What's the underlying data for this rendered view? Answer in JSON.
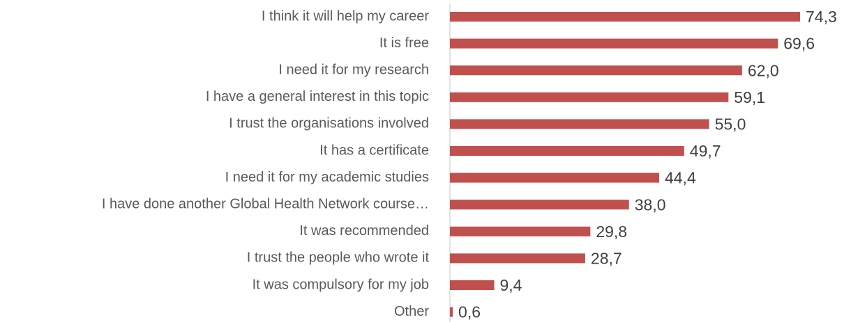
{
  "chart_data": {
    "type": "bar",
    "orientation": "horizontal",
    "color": "#c0504d",
    "categories": [
      "I think it will help my career",
      "It is free",
      "I need it for my research",
      "I have a general interest in this topic",
      "I trust the organisations involved",
      "It has a certificate",
      "I need it for my academic studies",
      "I have done another Global Health Network course…",
      "It was recommended",
      "I trust the people who wrote it",
      "It was compulsory for my job",
      "Other"
    ],
    "values": [
      74.3,
      69.6,
      62.0,
      59.1,
      55.0,
      49.7,
      44.4,
      38.0,
      29.8,
      28.7,
      9.4,
      0.6
    ],
    "value_labels": [
      "74,3",
      "69,6",
      "62,0",
      "59,1",
      "55,0",
      "49,7",
      "44,4",
      "38,0",
      "29,8",
      "28,7",
      "9,4",
      "0,6"
    ]
  }
}
